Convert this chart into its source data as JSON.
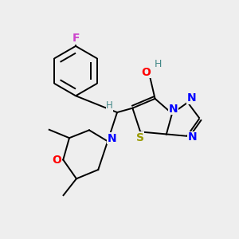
{
  "background_color": "#eeeeee",
  "atom_colors": {
    "C": "#000000",
    "N": "#0000ff",
    "O": "#ff0000",
    "S": "#999900",
    "F": "#cc44cc",
    "H_teal": "#448888"
  },
  "figsize": [
    3.0,
    3.0
  ],
  "dpi": 100
}
